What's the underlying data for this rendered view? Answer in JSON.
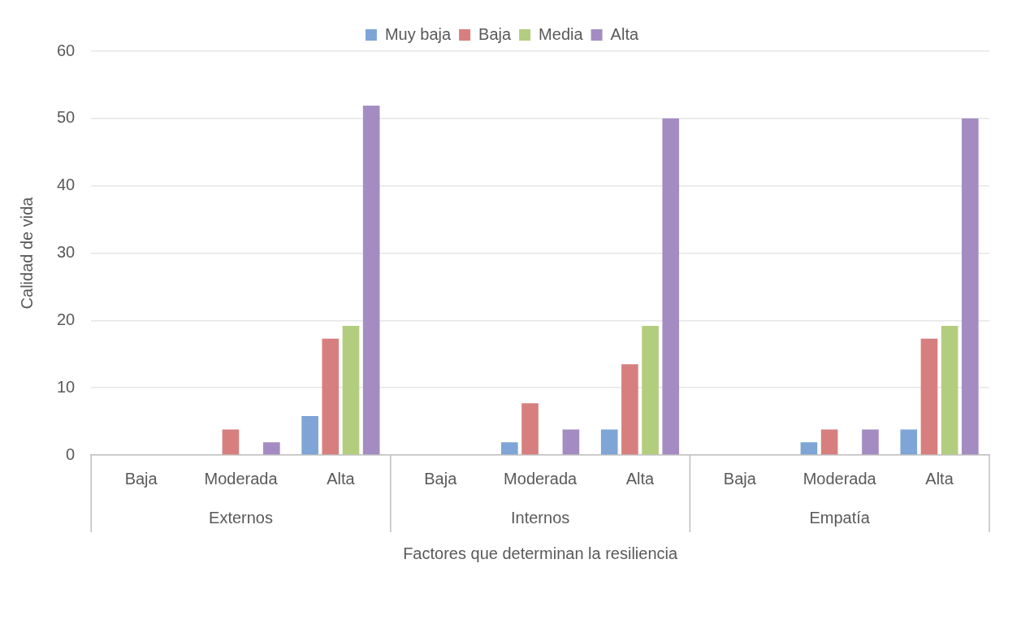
{
  "chart_data": {
    "type": "bar",
    "xlabel": "Factores que determinan la resiliencia",
    "ylabel": "Calidad de vida",
    "categories": [
      "Baja",
      "Moderada",
      "Alta",
      "Baja",
      "Moderada",
      "Alta",
      "Baja",
      "Moderada",
      "Alta"
    ],
    "annotations": [
      "Externos",
      "Internos",
      "Empatía"
    ],
    "series": [
      {
        "name": "Muy baja",
        "color": "#7ea5d5",
        "values": [
          0,
          0,
          5.8,
          0,
          1.9,
          3.8,
          0,
          1.9,
          3.8
        ]
      },
      {
        "name": "Baja",
        "color": "#d77f7f",
        "values": [
          0,
          3.8,
          17.3,
          0,
          7.7,
          13.5,
          0,
          3.8,
          17.3
        ]
      },
      {
        "name": "Media",
        "color": "#b3cd7e",
        "values": [
          0,
          0,
          19.2,
          0,
          0,
          19.2,
          0,
          0,
          19.2
        ]
      },
      {
        "name": "Alta",
        "color": "#a48cc3",
        "values": [
          0,
          1.9,
          51.9,
          0,
          3.8,
          50,
          0,
          3.8,
          50
        ]
      }
    ],
    "ylim": [
      0,
      60
    ],
    "yticks": [
      0,
      10,
      20,
      30,
      40,
      50,
      60
    ],
    "grid": "y",
    "legend": "top"
  }
}
